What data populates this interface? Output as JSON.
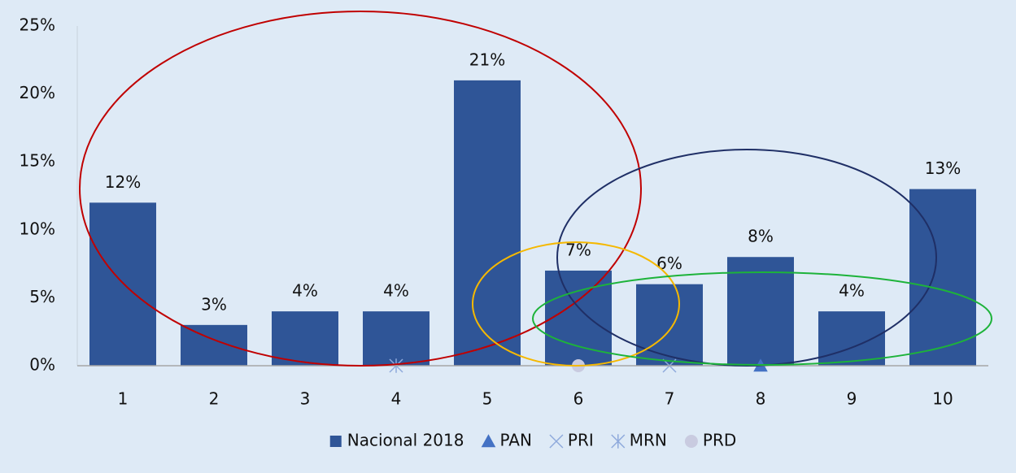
{
  "chart_data": {
    "type": "bar",
    "categories": [
      "1",
      "2",
      "3",
      "4",
      "5",
      "6",
      "7",
      "8",
      "9",
      "10"
    ],
    "series": [
      {
        "name": "Nacional 2018",
        "color": "#2f5597",
        "marker": "bar",
        "values": [
          12,
          3,
          4,
          4,
          21,
          7,
          6,
          8,
          4,
          13
        ],
        "value_labels": [
          "12%",
          "3%",
          "4%",
          "4%",
          "21%",
          "7%",
          "6%",
          "8%",
          "4%",
          "13%"
        ]
      },
      {
        "name": "PAN",
        "color": "#4472c4",
        "marker": "triangle",
        "values": [
          null,
          null,
          null,
          null,
          null,
          null,
          null,
          0,
          null,
          null
        ]
      },
      {
        "name": "PRI",
        "color": "#8faadc",
        "marker": "x",
        "values": [
          null,
          null,
          null,
          null,
          null,
          null,
          0,
          null,
          null,
          null
        ]
      },
      {
        "name": "MRN",
        "color": "#8faadc",
        "marker": "asterisk",
        "values": [
          null,
          null,
          null,
          0,
          null,
          null,
          null,
          null,
          null,
          null
        ]
      },
      {
        "name": "PRD",
        "color": "#c9cbe0",
        "marker": "circle",
        "values": [
          null,
          null,
          null,
          null,
          null,
          0,
          null,
          null,
          null,
          null
        ]
      }
    ],
    "ylim": [
      0,
      25
    ],
    "yticks": [
      {
        "value": 0,
        "label": "0%"
      },
      {
        "value": 5,
        "label": "5%"
      },
      {
        "value": 10,
        "label": "10%"
      },
      {
        "value": 15,
        "label": "15%"
      },
      {
        "value": 20,
        "label": "20%"
      },
      {
        "value": 25,
        "label": "25%"
      }
    ],
    "legend": "bottom",
    "grid": false
  }
}
